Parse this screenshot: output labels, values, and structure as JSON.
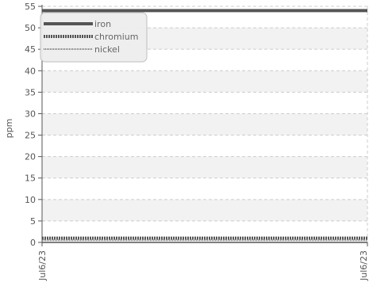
{
  "chart_data": {
    "type": "line",
    "ylabel": "ppm",
    "xlabel": "",
    "title": "",
    "ylim": [
      0,
      55
    ],
    "yticks": [
      0,
      5,
      10,
      15,
      20,
      25,
      30,
      35,
      40,
      45,
      50,
      55
    ],
    "x": [
      "Jul6/23",
      "Jul6/23"
    ],
    "series": [
      {
        "name": "iron",
        "values": [
          54,
          54
        ],
        "style": "solid",
        "color": "#555555"
      },
      {
        "name": "chromium",
        "values": [
          1,
          1
        ],
        "style": "dense-dash",
        "color": "#555555"
      },
      {
        "name": "nickel",
        "values": [
          0.5,
          0.5
        ],
        "style": "fine-dash",
        "color": "#777777"
      }
    ],
    "grid": true,
    "legend_position": "top-left",
    "colors": {
      "grid": "#cccccc",
      "axis": "#555555",
      "band": "#f2f2f2",
      "legend_bg": "#eeeeee"
    }
  }
}
